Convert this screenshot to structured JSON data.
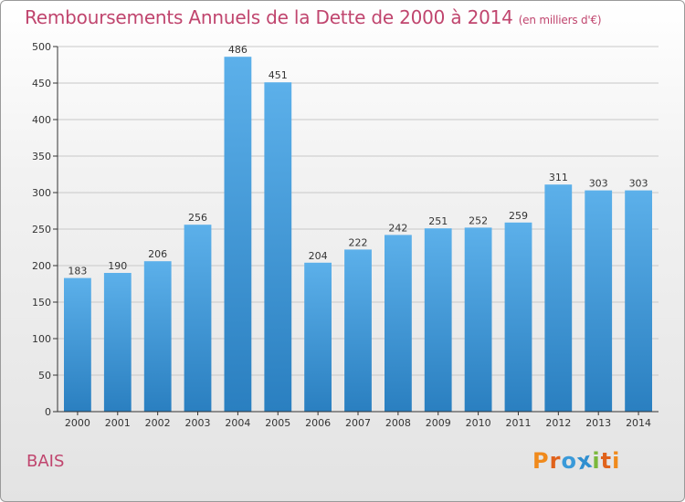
{
  "header": {
    "title": "Remboursements Annuels de la Dette de 2000 à 2014",
    "unit": "(en milliers d'€)"
  },
  "footer": {
    "place": "BAIS",
    "logo_letters": [
      "P",
      "r",
      "o",
      "x",
      "i",
      "t",
      "i"
    ],
    "logo_colors": [
      "#f08a1c",
      "#e0621b",
      "#3a9ad9",
      "#2f8fd0",
      "#7ab83b",
      "#e0621b",
      "#f08a1c"
    ]
  },
  "colors": {
    "bar_top": "#5cb0ea",
    "bar_bottom": "#2a7fc0",
    "grid": "#c8c8c8",
    "axis": "#333333",
    "text": "#333333",
    "accent": "#c0456e"
  },
  "chart_data": {
    "type": "bar",
    "title": "Remboursements Annuels de la Dette de 2000 à 2014",
    "subtitle": "(en milliers d'€)",
    "xlabel": "",
    "ylabel": "",
    "categories": [
      "2000",
      "2001",
      "2002",
      "2003",
      "2004",
      "2005",
      "2006",
      "2007",
      "2008",
      "2009",
      "2010",
      "2011",
      "2012",
      "2013",
      "2014"
    ],
    "values": [
      183,
      190,
      206,
      256,
      486,
      451,
      204,
      222,
      242,
      251,
      252,
      259,
      311,
      303,
      303
    ],
    "ylim": [
      0,
      500
    ],
    "yticks": [
      0,
      50,
      100,
      150,
      200,
      250,
      300,
      350,
      400,
      450,
      500
    ],
    "grid": true,
    "legend": "none"
  }
}
